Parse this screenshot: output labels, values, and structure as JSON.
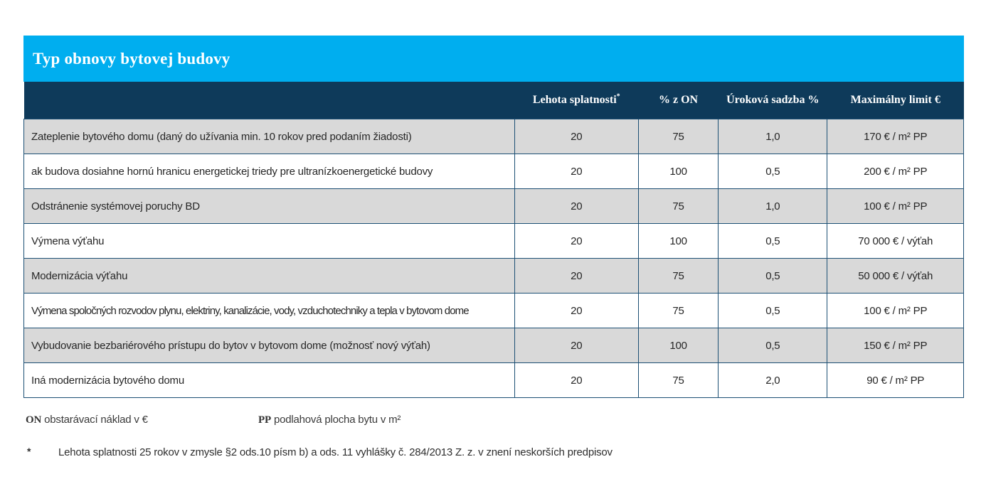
{
  "title": "Typ obnovy bytovej budovy",
  "colors": {
    "accent_blue": "#00AEEF",
    "header_navy": "#0E3A5A",
    "row_gray": "#D9D9D9",
    "border": "#1C4F74"
  },
  "columns": [
    {
      "label": "Lehota splatnosti",
      "sup": "*"
    },
    {
      "label": "% z ON",
      "sup": ""
    },
    {
      "label": "Úroková sadzba %",
      "sup": ""
    },
    {
      "label": "Maximálny limit €",
      "sup": ""
    }
  ],
  "table": {
    "rows": [
      {
        "desc": "Zateplenie bytového domu (daný do užívania min. 10 rokov pred podaním žiadosti)",
        "term": "20",
        "pct": "75",
        "rate": "1,0",
        "limit": "170 € / m² PP"
      },
      {
        "desc": "ak budova dosiahne hornú hranicu energetickej triedy pre ultranízkoenergetické budovy",
        "term": "20",
        "pct": "100",
        "rate": "0,5",
        "limit": "200 € / m² PP"
      },
      {
        "desc": "Odstránenie systémovej poruchy BD",
        "term": "20",
        "pct": "75",
        "rate": "1,0",
        "limit": "100 € / m² PP"
      },
      {
        "desc": "Výmena výťahu",
        "term": "20",
        "pct": "100",
        "rate": "0,5",
        "limit": "70 000 € / výťah"
      },
      {
        "desc": "Modernizácia výťahu",
        "term": "20",
        "pct": "75",
        "rate": "0,5",
        "limit": "50 000 € / výťah"
      },
      {
        "desc": "Výmena spoločných rozvodov plynu, elektriny, kanalizácie, vody, vzduchotechniky a tepla v bytovom dome",
        "term": "20",
        "pct": "75",
        "rate": "0,5",
        "limit": "100 € / m² PP"
      },
      {
        "desc": "Vybudovanie bezbariérového prístupu do bytov v bytovom dome (možnosť nový výťah)",
        "term": "20",
        "pct": "100",
        "rate": "0,5",
        "limit": "150 € / m² PP"
      },
      {
        "desc": "Iná modernizácia bytového domu",
        "term": "20",
        "pct": "75",
        "rate": "2,0",
        "limit": "90 € / m² PP"
      }
    ]
  },
  "legend": [
    {
      "abbr": "ON",
      "text": "obstarávací náklad v €"
    },
    {
      "abbr": "PP",
      "text": "podlahová plocha bytu v m²"
    }
  ],
  "footnote": {
    "marker": "*",
    "text": "Lehota splatnosti 25 rokov v zmysle §2 ods.10 písm b) a ods. 11 vyhlášky č. 284/2013 Z. z. v znení neskorších predpisov"
  }
}
